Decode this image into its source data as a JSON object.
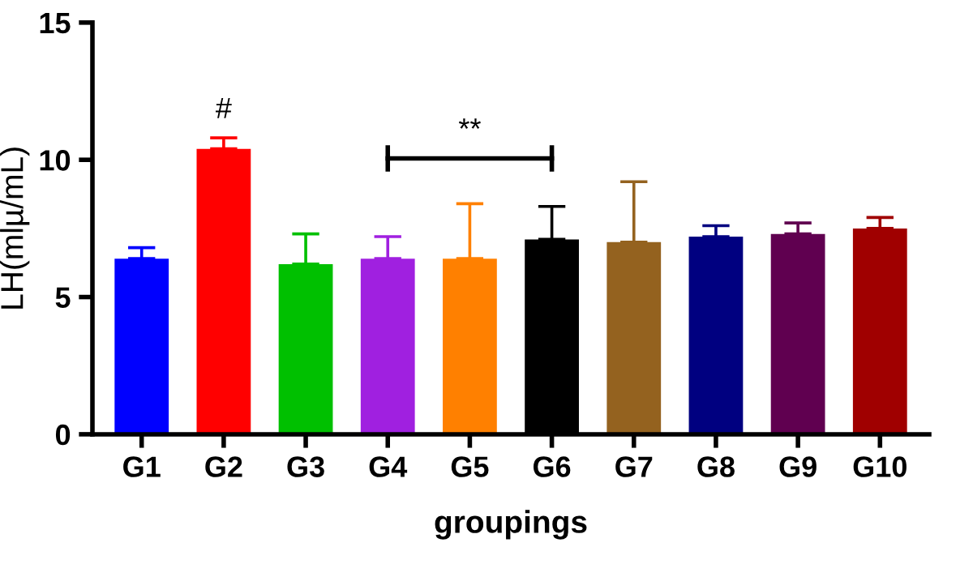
{
  "chart_data": {
    "type": "bar",
    "xlabel": "groupings",
    "ylabel": "LH(mlµ/mL)",
    "categories": [
      "G1",
      "G2",
      "G3",
      "G4",
      "G5",
      "G6",
      "G7",
      "G8",
      "G9",
      "G10"
    ],
    "values": [
      6.4,
      10.4,
      6.2,
      6.4,
      6.4,
      7.1,
      7.0,
      7.2,
      7.3,
      7.5
    ],
    "errors": [
      [
        6.4,
        6.8
      ],
      [
        10.4,
        10.8
      ],
      [
        6.2,
        7.3
      ],
      [
        6.4,
        7.2
      ],
      [
        6.4,
        8.4
      ],
      [
        7.1,
        8.3
      ],
      [
        7.0,
        9.2
      ],
      [
        7.2,
        7.6
      ],
      [
        7.3,
        7.7
      ],
      [
        7.5,
        7.9
      ]
    ],
    "colors": [
      "#0000ff",
      "#ff0000",
      "#00c000",
      "#a020e0",
      "#ff8000",
      "#000000",
      "#94621f",
      "#000080",
      "#600050",
      "#a00000"
    ],
    "ylim": [
      0,
      15
    ],
    "yticks": [
      0,
      5,
      10,
      15
    ],
    "grid": false,
    "annotations": [
      "#",
      "**"
    ]
  }
}
